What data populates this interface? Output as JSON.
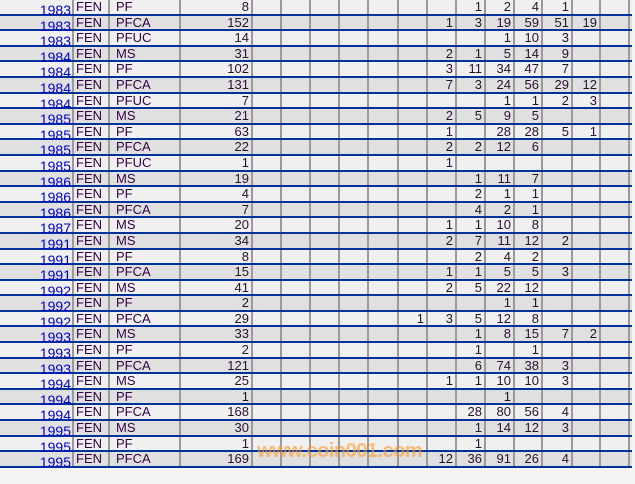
{
  "table": {
    "rows": [
      {
        "year": "1983",
        "source": "FEN",
        "category": "PF",
        "total": "8",
        "counts": [
          "",
          "",
          "",
          "",
          "",
          "",
          "",
          "1",
          "2",
          "4",
          "1",
          "",
          ""
        ]
      },
      {
        "year": "1983",
        "source": "FEN",
        "category": "PFCA",
        "total": "152",
        "counts": [
          "",
          "",
          "",
          "",
          "",
          "",
          "1",
          "3",
          "19",
          "59",
          "51",
          "19",
          ""
        ]
      },
      {
        "year": "1983",
        "source": "FEN",
        "category": "PFUC",
        "total": "14",
        "counts": [
          "",
          "",
          "",
          "",
          "",
          "",
          "",
          "",
          "1",
          "10",
          "3",
          "",
          ""
        ]
      },
      {
        "year": "1984",
        "source": "FEN",
        "category": "MS",
        "total": "31",
        "counts": [
          "",
          "",
          "",
          "",
          "",
          "",
          "2",
          "1",
          "5",
          "14",
          "9",
          "",
          ""
        ]
      },
      {
        "year": "1984",
        "source": "FEN",
        "category": "PF",
        "total": "102",
        "counts": [
          "",
          "",
          "",
          "",
          "",
          "",
          "3",
          "11",
          "34",
          "47",
          "7",
          "",
          ""
        ]
      },
      {
        "year": "1984",
        "source": "FEN",
        "category": "PFCA",
        "total": "131",
        "counts": [
          "",
          "",
          "",
          "",
          "",
          "",
          "7",
          "3",
          "24",
          "56",
          "29",
          "12",
          ""
        ]
      },
      {
        "year": "1984",
        "source": "FEN",
        "category": "PFUC",
        "total": "7",
        "counts": [
          "",
          "",
          "",
          "",
          "",
          "",
          "",
          "",
          "1",
          "1",
          "2",
          "3",
          ""
        ]
      },
      {
        "year": "1985",
        "source": "FEN",
        "category": "MS",
        "total": "21",
        "counts": [
          "",
          "",
          "",
          "",
          "",
          "",
          "2",
          "5",
          "9",
          "5",
          "",
          "",
          ""
        ]
      },
      {
        "year": "1985",
        "source": "FEN",
        "category": "PF",
        "total": "63",
        "counts": [
          "",
          "",
          "",
          "",
          "",
          "",
          "1",
          "",
          "28",
          "28",
          "5",
          "1",
          ""
        ]
      },
      {
        "year": "1985",
        "source": "FEN",
        "category": "PFCA",
        "total": "22",
        "counts": [
          "",
          "",
          "",
          "",
          "",
          "",
          "2",
          "2",
          "12",
          "6",
          "",
          "",
          ""
        ]
      },
      {
        "year": "1985",
        "source": "FEN",
        "category": "PFUC",
        "total": "1",
        "counts": [
          "",
          "",
          "",
          "",
          "",
          "",
          "1",
          "",
          "",
          "",
          "",
          "",
          ""
        ]
      },
      {
        "year": "1986",
        "source": "FEN",
        "category": "MS",
        "total": "19",
        "counts": [
          "",
          "",
          "",
          "",
          "",
          "",
          "",
          "1",
          "11",
          "7",
          "",
          "",
          ""
        ]
      },
      {
        "year": "1986",
        "source": "FEN",
        "category": "PF",
        "total": "4",
        "counts": [
          "",
          "",
          "",
          "",
          "",
          "",
          "",
          "2",
          "1",
          "1",
          "",
          "",
          ""
        ]
      },
      {
        "year": "1986",
        "source": "FEN",
        "category": "PFCA",
        "total": "7",
        "counts": [
          "",
          "",
          "",
          "",
          "",
          "",
          "",
          "4",
          "2",
          "1",
          "",
          "",
          ""
        ]
      },
      {
        "year": "1987",
        "source": "FEN",
        "category": "MS",
        "total": "20",
        "counts": [
          "",
          "",
          "",
          "",
          "",
          "",
          "1",
          "1",
          "10",
          "8",
          "",
          "",
          ""
        ]
      },
      {
        "year": "1991",
        "source": "FEN",
        "category": "MS",
        "total": "34",
        "counts": [
          "",
          "",
          "",
          "",
          "",
          "",
          "2",
          "7",
          "11",
          "12",
          "2",
          "",
          ""
        ]
      },
      {
        "year": "1991",
        "source": "FEN",
        "category": "PF",
        "total": "8",
        "counts": [
          "",
          "",
          "",
          "",
          "",
          "",
          "",
          "2",
          "4",
          "2",
          "",
          "",
          ""
        ]
      },
      {
        "year": "1991",
        "source": "FEN",
        "category": "PFCA",
        "total": "15",
        "counts": [
          "",
          "",
          "",
          "",
          "",
          "",
          "1",
          "1",
          "5",
          "5",
          "3",
          "",
          ""
        ]
      },
      {
        "year": "1992",
        "source": "FEN",
        "category": "MS",
        "total": "41",
        "counts": [
          "",
          "",
          "",
          "",
          "",
          "",
          "2",
          "5",
          "22",
          "12",
          "",
          "",
          ""
        ]
      },
      {
        "year": "1992",
        "source": "FEN",
        "category": "PF",
        "total": "2",
        "counts": [
          "",
          "",
          "",
          "",
          "",
          "",
          "",
          "",
          "1",
          "1",
          "",
          "",
          ""
        ]
      },
      {
        "year": "1992",
        "source": "FEN",
        "category": "PFCA",
        "total": "29",
        "counts": [
          "",
          "",
          "",
          "",
          "",
          "1",
          "3",
          "5",
          "12",
          "8",
          "",
          "",
          ""
        ]
      },
      {
        "year": "1993",
        "source": "FEN",
        "category": "MS",
        "total": "33",
        "counts": [
          "",
          "",
          "",
          "",
          "",
          "",
          "",
          "1",
          "8",
          "15",
          "7",
          "2",
          ""
        ]
      },
      {
        "year": "1993",
        "source": "FEN",
        "category": "PF",
        "total": "2",
        "counts": [
          "",
          "",
          "",
          "",
          "",
          "",
          "",
          "1",
          "",
          "1",
          "",
          "",
          ""
        ]
      },
      {
        "year": "1993",
        "source": "FEN",
        "category": "PFCA",
        "total": "121",
        "counts": [
          "",
          "",
          "",
          "",
          "",
          "",
          "",
          "6",
          "74",
          "38",
          "3",
          "",
          ""
        ]
      },
      {
        "year": "1994",
        "source": "FEN",
        "category": "MS",
        "total": "25",
        "counts": [
          "",
          "",
          "",
          "",
          "",
          "",
          "1",
          "1",
          "10",
          "10",
          "3",
          "",
          ""
        ]
      },
      {
        "year": "1994",
        "source": "FEN",
        "category": "PF",
        "total": "1",
        "counts": [
          "",
          "",
          "",
          "",
          "",
          "",
          "",
          "",
          "1",
          "",
          "",
          "",
          ""
        ]
      },
      {
        "year": "1994",
        "source": "FEN",
        "category": "PFCA",
        "total": "168",
        "counts": [
          "",
          "",
          "",
          "",
          "",
          "",
          "",
          "28",
          "80",
          "56",
          "4",
          "",
          ""
        ]
      },
      {
        "year": "1995",
        "source": "FEN",
        "category": "MS",
        "total": "30",
        "counts": [
          "",
          "",
          "",
          "",
          "",
          "",
          "",
          "1",
          "14",
          "12",
          "3",
          "",
          ""
        ]
      },
      {
        "year": "1995",
        "source": "FEN",
        "category": "PF",
        "total": "1",
        "counts": [
          "",
          "",
          "",
          "",
          "",
          "",
          "",
          "1",
          "",
          "",
          "",
          "",
          ""
        ]
      },
      {
        "year": "1995",
        "source": "FEN",
        "category": "PFCA",
        "total": "169",
        "counts": [
          "",
          "",
          "",
          "",
          "",
          "",
          "12",
          "36",
          "91",
          "26",
          "4",
          "",
          ""
        ]
      }
    ]
  },
  "watermark": "www.coin001.com",
  "colors": {
    "row_separator": "#003399",
    "year_link": "#0000cc",
    "watermark": "#ff9a2e"
  }
}
